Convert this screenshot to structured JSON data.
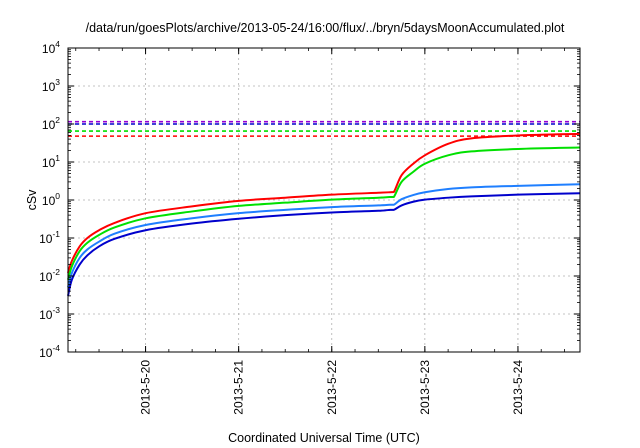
{
  "chart_data": {
    "type": "line",
    "title": "/data/run/goesPlots/archive/2013-05-24/16:00/flux/../bryn/5daysMoonAccumulated.plot",
    "xlabel": "Coordinated Universal Time (UTC)",
    "ylabel": "cSv",
    "y_scale": "log",
    "ylim": [
      0.0001,
      10000
    ],
    "xlim": [
      "2013-05-19 04:00",
      "2013-05-24 16:00"
    ],
    "y_ticks": [
      {
        "base": "10",
        "exp": "-4",
        "value": 0.0001
      },
      {
        "base": "10",
        "exp": "-3",
        "value": 0.001
      },
      {
        "base": "10",
        "exp": "-2",
        "value": 0.01
      },
      {
        "base": "10",
        "exp": "-1",
        "value": 0.1
      },
      {
        "base": "10",
        "exp": "0",
        "value": 1
      },
      {
        "base": "10",
        "exp": "1",
        "value": 10
      },
      {
        "base": "10",
        "exp": "2",
        "value": 100
      },
      {
        "base": "10",
        "exp": "3",
        "value": 1000
      },
      {
        "base": "10",
        "exp": "4",
        "value": 10000
      }
    ],
    "x_ticks": [
      {
        "label": "2013-5-20",
        "value": "2013-05-20 00:00"
      },
      {
        "label": "2013-5-21",
        "value": "2013-05-21 00:00"
      },
      {
        "label": "2013-5-22",
        "value": "2013-05-22 00:00"
      },
      {
        "label": "2013-5-23",
        "value": "2013-05-23 00:00"
      },
      {
        "label": "2013-5-24",
        "value": "2013-05-24 00:00"
      }
    ],
    "grid": true,
    "series": [
      {
        "color": "#ff0000",
        "style": "solid",
        "x": [
          "2013-05-19 04:00",
          "2013-05-19 05:00",
          "2013-05-19 07:00",
          "2013-05-19 09:00",
          "2013-05-19 12:00",
          "2013-05-19 16:00",
          "2013-05-20 00:00",
          "2013-05-20 12:00",
          "2013-05-21 00:00",
          "2013-05-21 12:00",
          "2013-05-22 00:00",
          "2013-05-22 12:00",
          "2013-05-22 15:00",
          "2013-05-22 16:00",
          "2013-05-22 18:00",
          "2013-05-22 21:00",
          "2013-05-23 00:00",
          "2013-05-23 06:00",
          "2013-05-23 12:00",
          "2013-05-24 00:00",
          "2013-05-24 16:00"
        ],
        "y": [
          0.012,
          0.025,
          0.06,
          0.1,
          0.16,
          0.25,
          0.45,
          0.68,
          0.95,
          1.15,
          1.38,
          1.55,
          1.6,
          1.62,
          4.5,
          9,
          15,
          30,
          42,
          50,
          55
        ]
      },
      {
        "color": "#00e000",
        "style": "solid",
        "x": [
          "2013-05-19 04:00",
          "2013-05-19 05:00",
          "2013-05-19 07:00",
          "2013-05-19 09:00",
          "2013-05-19 12:00",
          "2013-05-19 16:00",
          "2013-05-20 00:00",
          "2013-05-20 12:00",
          "2013-05-21 00:00",
          "2013-05-21 12:00",
          "2013-05-22 00:00",
          "2013-05-22 12:00",
          "2013-05-22 15:00",
          "2013-05-22 16:00",
          "2013-05-22 18:00",
          "2013-05-22 21:00",
          "2013-05-23 00:00",
          "2013-05-23 06:00",
          "2013-05-23 12:00",
          "2013-05-24 00:00",
          "2013-05-24 16:00"
        ],
        "y": [
          0.008,
          0.018,
          0.045,
          0.075,
          0.12,
          0.19,
          0.33,
          0.5,
          0.7,
          0.85,
          1.02,
          1.15,
          1.2,
          1.2,
          3,
          5.5,
          9,
          15,
          19,
          22,
          24
        ]
      },
      {
        "color": "#1f7fff",
        "style": "solid",
        "x": [
          "2013-05-19 04:00",
          "2013-05-19 05:00",
          "2013-05-19 07:00",
          "2013-05-19 09:00",
          "2013-05-19 12:00",
          "2013-05-19 16:00",
          "2013-05-20 00:00",
          "2013-05-20 12:00",
          "2013-05-21 00:00",
          "2013-05-21 12:00",
          "2013-05-22 00:00",
          "2013-05-22 12:00",
          "2013-05-22 15:00",
          "2013-05-22 16:00",
          "2013-05-22 18:00",
          "2013-05-22 21:00",
          "2013-05-23 00:00",
          "2013-05-23 06:00",
          "2013-05-23 12:00",
          "2013-05-24 00:00",
          "2013-05-24 16:00"
        ],
        "y": [
          0.005,
          0.012,
          0.03,
          0.05,
          0.08,
          0.13,
          0.22,
          0.33,
          0.45,
          0.55,
          0.65,
          0.72,
          0.75,
          0.75,
          1.05,
          1.35,
          1.6,
          1.95,
          2.15,
          2.35,
          2.6
        ]
      },
      {
        "color": "#0000cc",
        "style": "solid",
        "x": [
          "2013-05-19 04:00",
          "2013-05-19 05:00",
          "2013-05-19 07:00",
          "2013-05-19 09:00",
          "2013-05-19 12:00",
          "2013-05-19 16:00",
          "2013-05-20 00:00",
          "2013-05-20 12:00",
          "2013-05-21 00:00",
          "2013-05-21 12:00",
          "2013-05-22 00:00",
          "2013-05-22 12:00",
          "2013-05-22 15:00",
          "2013-05-22 16:00",
          "2013-05-22 18:00",
          "2013-05-22 21:00",
          "2013-05-23 00:00",
          "2013-05-23 06:00",
          "2013-05-23 12:00",
          "2013-05-24 00:00",
          "2013-05-24 16:00"
        ],
        "y": [
          0.003,
          0.008,
          0.02,
          0.035,
          0.06,
          0.095,
          0.16,
          0.24,
          0.32,
          0.4,
          0.47,
          0.52,
          0.55,
          0.55,
          0.72,
          0.9,
          1.02,
          1.15,
          1.25,
          1.38,
          1.5
        ]
      }
    ],
    "reference_lines": [
      {
        "color": "#9400d3",
        "style": "dashed",
        "y": 115
      },
      {
        "color": "#0000cc",
        "style": "dashed",
        "y": 100
      },
      {
        "color": "#00e000",
        "style": "dashed",
        "y": 65
      },
      {
        "color": "#ff0000",
        "style": "dashed",
        "y": 48
      }
    ]
  }
}
